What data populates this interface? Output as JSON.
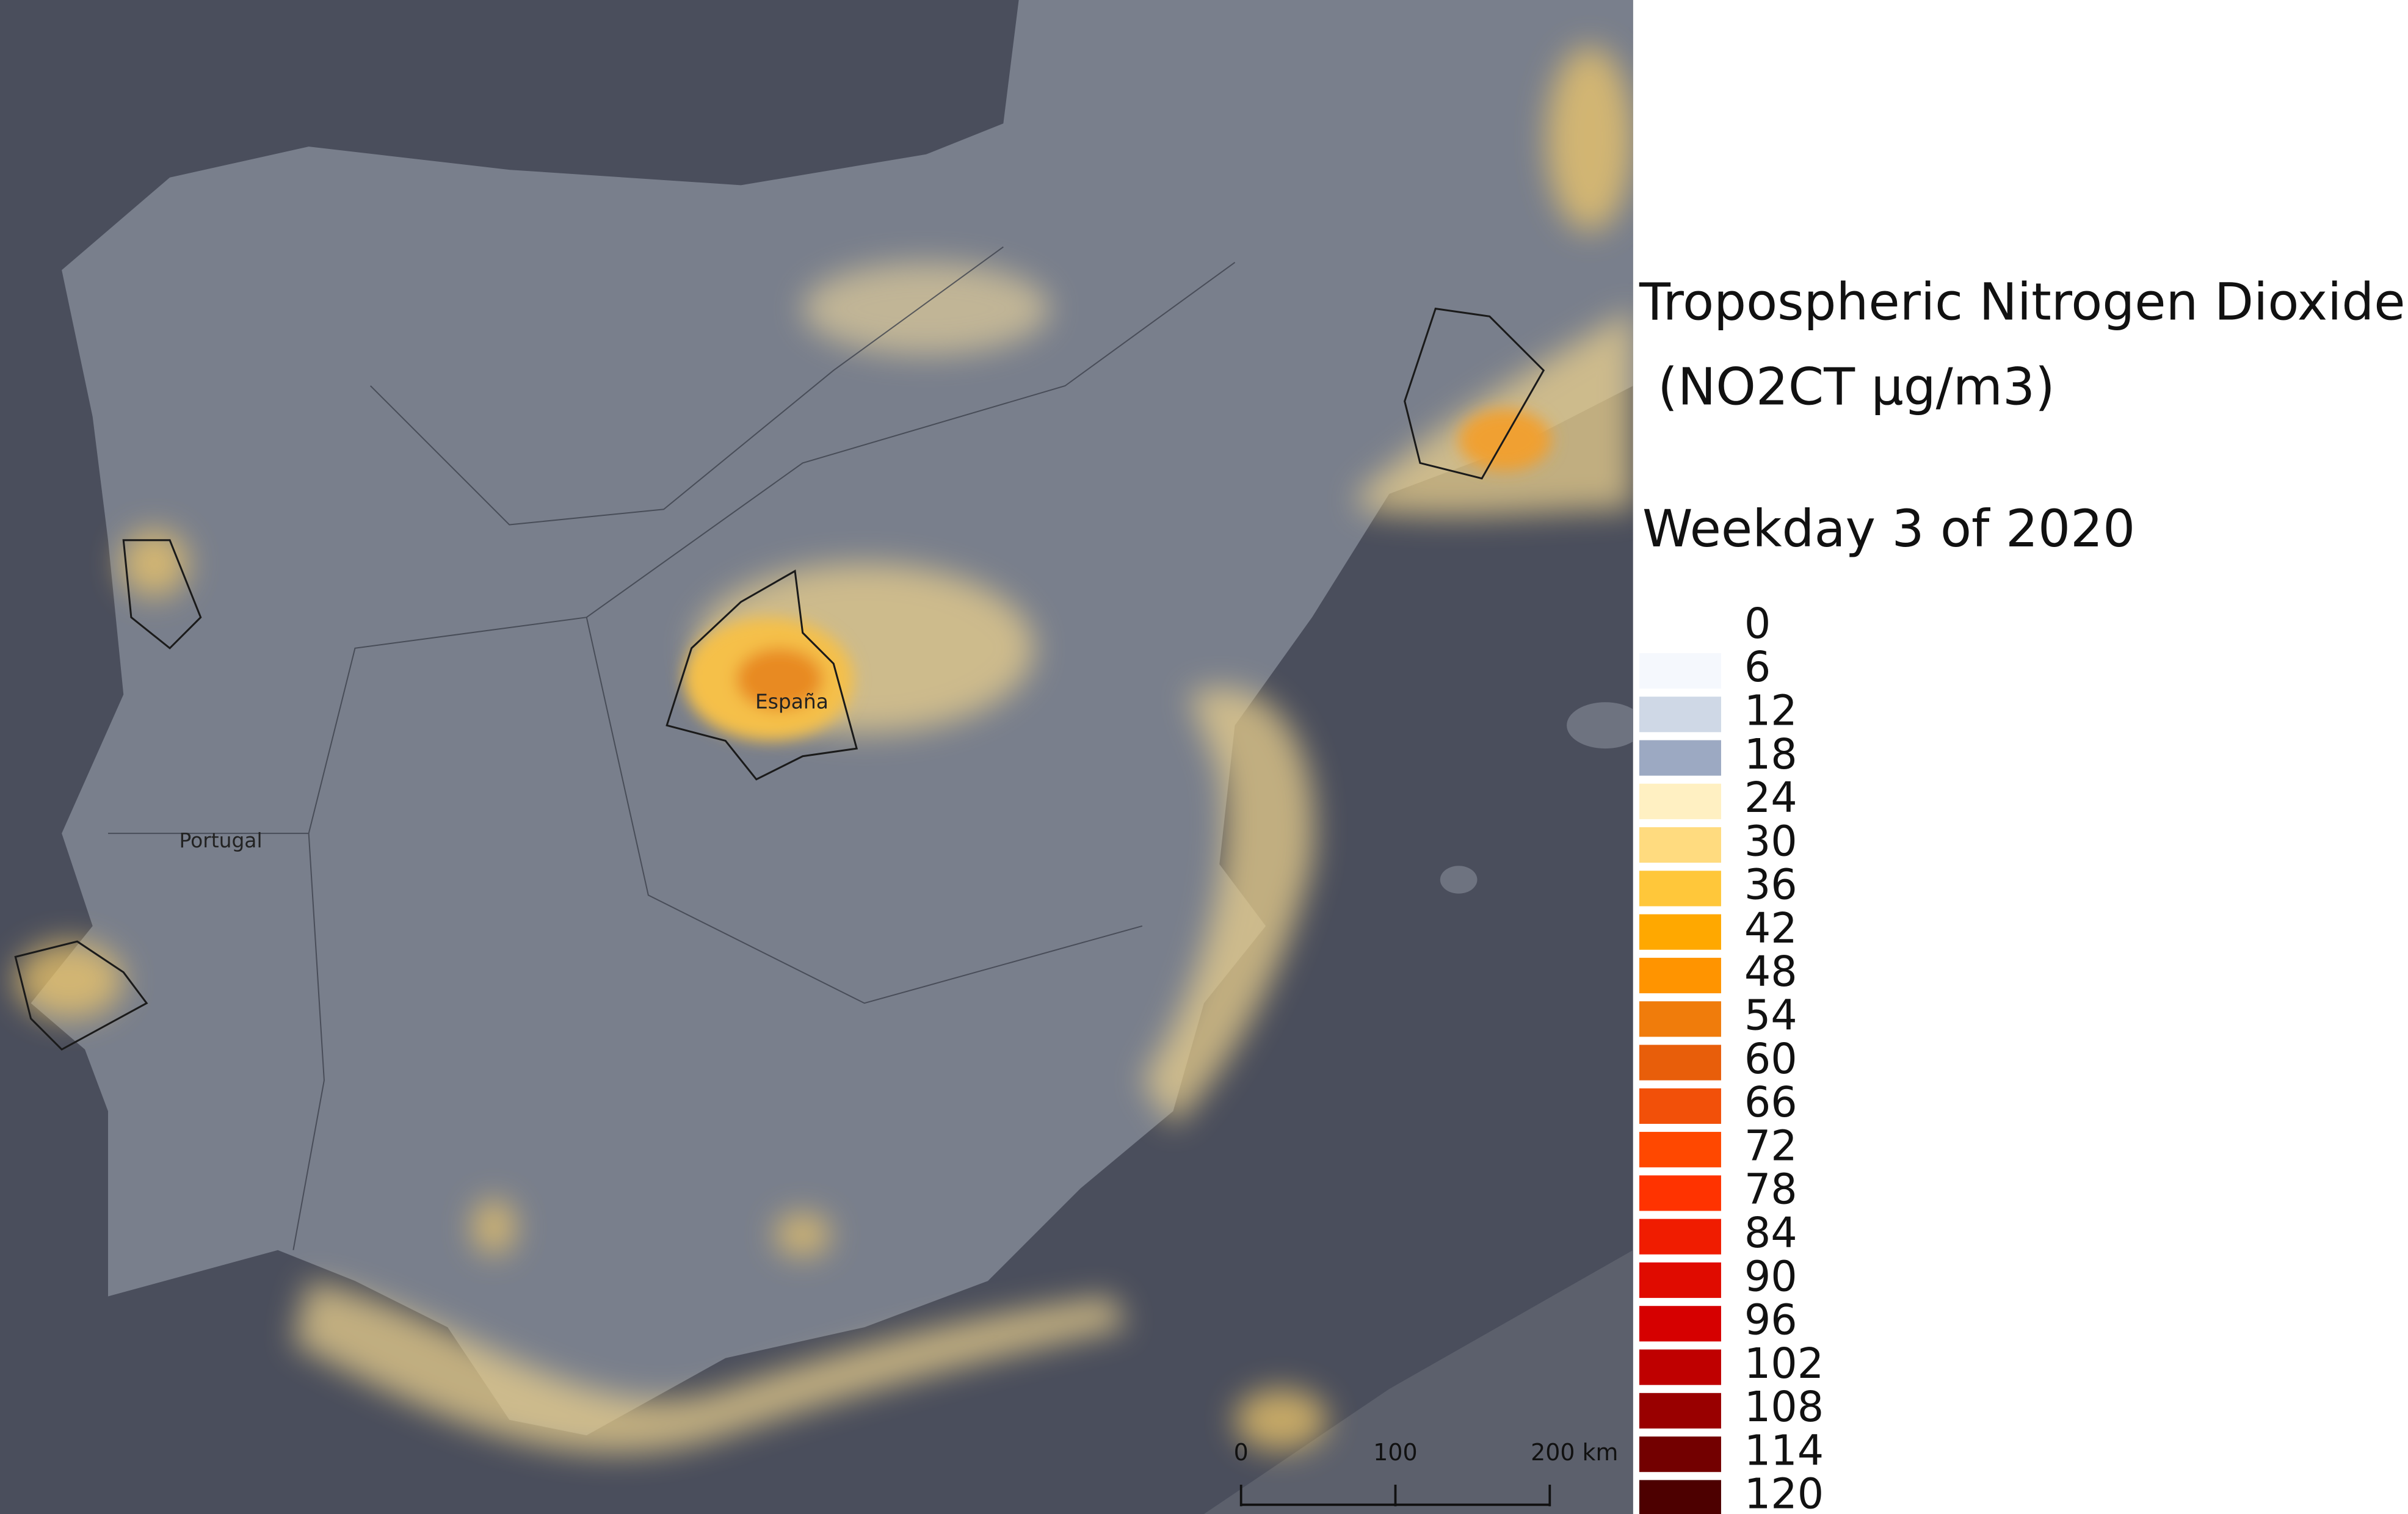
{
  "title": "Tropospheric Nitrogen Dioxide",
  "subtitle": "(NO2CT µg/m3)",
  "period": "Weekday 3 of 2020",
  "map_labels": {
    "spain": "España",
    "portugal": "Portugal"
  },
  "legend": [
    {
      "value": 0,
      "color": "#ffffff"
    },
    {
      "value": 6,
      "color": "#f5f8fd"
    },
    {
      "value": 12,
      "color": "#cfd8e6"
    },
    {
      "value": 18,
      "color": "#9ca9c2"
    },
    {
      "value": 24,
      "color": "#fff0c2"
    },
    {
      "value": 30,
      "color": "#ffdb7f"
    },
    {
      "value": 36,
      "color": "#ffc73a"
    },
    {
      "value": 42,
      "color": "#ffa800"
    },
    {
      "value": 48,
      "color": "#ff9400"
    },
    {
      "value": 54,
      "color": "#f07c0b"
    },
    {
      "value": 60,
      "color": "#e85e0a"
    },
    {
      "value": 66,
      "color": "#f25009"
    },
    {
      "value": 72,
      "color": "#ff4800"
    },
    {
      "value": 78,
      "color": "#ff3300"
    },
    {
      "value": 84,
      "color": "#f01c00"
    },
    {
      "value": 90,
      "color": "#e00b00"
    },
    {
      "value": 96,
      "color": "#d60000"
    },
    {
      "value": 102,
      "color": "#bf0000"
    },
    {
      "value": 108,
      "color": "#990000"
    },
    {
      "value": 114,
      "color": "#730000"
    },
    {
      "value": 120,
      "color": "#4d0000"
    }
  ],
  "scale_bar": {
    "ticks": [
      0,
      100,
      {
        "value": 200,
        "label": "200 km"
      }
    ]
  }
}
